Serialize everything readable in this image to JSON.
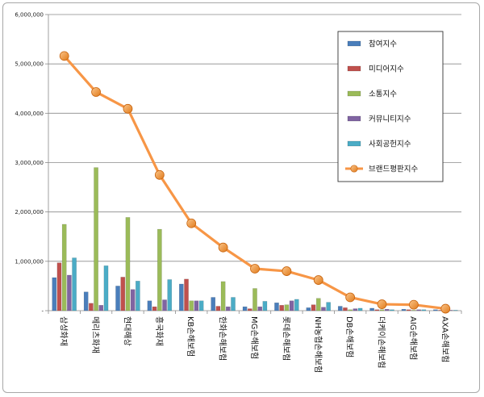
{
  "chart_data": {
    "type": "bar",
    "categories": [
      "삼성화재",
      "메리츠화재",
      "현대해상",
      "흥국화재",
      "KB손해보험",
      "한화손해보험",
      "MG손해보험",
      "롯데손해보험",
      "NH농협손해보험",
      "DB손해보험",
      "더케이손해보험",
      "AIG손해보험",
      "AXA손해보험"
    ],
    "ylim": [
      0,
      6000000
    ],
    "yticks": [
      0,
      1000000,
      2000000,
      3000000,
      4000000,
      5000000,
      6000000
    ],
    "ytick_labels": [
      "-",
      "1,000,000",
      "2,000,000",
      "3,000,000",
      "4,000,000",
      "5,000,000",
      "6,000,000"
    ],
    "grid": true,
    "legend_position": "top-right",
    "series": [
      {
        "name": "참여지수",
        "kind": "bar",
        "color": "#4a7ebb",
        "values": [
          670000,
          380000,
          500000,
          200000,
          540000,
          270000,
          80000,
          160000,
          60000,
          90000,
          50000,
          30000,
          20000
        ]
      },
      {
        "name": "미디어지수",
        "kind": "bar",
        "color": "#c0504d",
        "values": [
          970000,
          150000,
          680000,
          80000,
          640000,
          90000,
          40000,
          110000,
          120000,
          60000,
          20000,
          20000,
          10000
        ]
      },
      {
        "name": "소통지수",
        "kind": "bar",
        "color": "#9bbb59",
        "values": [
          1750000,
          2900000,
          1890000,
          1650000,
          200000,
          590000,
          450000,
          120000,
          250000,
          20000,
          20000,
          10000,
          10000
        ]
      },
      {
        "name": "커뮤니티지수",
        "kind": "bar",
        "color": "#8064a2",
        "values": [
          720000,
          110000,
          430000,
          220000,
          200000,
          80000,
          80000,
          200000,
          70000,
          40000,
          30000,
          20000,
          10000
        ]
      },
      {
        "name": "사회공헌지수",
        "kind": "bar",
        "color": "#4bacc6",
        "values": [
          1070000,
          910000,
          600000,
          630000,
          200000,
          270000,
          190000,
          230000,
          170000,
          50000,
          20000,
          20000,
          10000
        ]
      },
      {
        "name": "브랜드평판지수",
        "kind": "line",
        "color": "#f79646",
        "values": [
          5160000,
          4430000,
          4090000,
          2750000,
          1770000,
          1280000,
          850000,
          800000,
          620000,
          270000,
          130000,
          120000,
          40000
        ]
      }
    ]
  }
}
